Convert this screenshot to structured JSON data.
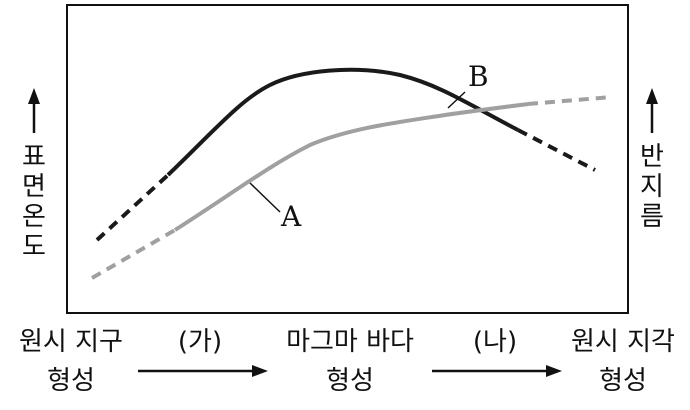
{
  "y_axis_left": {
    "chars": [
      "표",
      "면",
      "온",
      "도"
    ]
  },
  "y_axis_right": {
    "chars": [
      "반",
      "지",
      "름"
    ]
  },
  "stages": {
    "stage1": {
      "line1": "원시 지구",
      "line2": "형성"
    },
    "stage2": {
      "line1": "마그마 바다",
      "line2": "형성"
    },
    "stage3": {
      "line1": "원시 지각",
      "line2": "형성"
    }
  },
  "transitions": {
    "ga": "(가)",
    "na": "(나)"
  },
  "curves": {
    "A": {
      "label": "A",
      "color": "#a0a0a0"
    },
    "B": {
      "label": "B",
      "color": "#1a1a1a"
    }
  }
}
